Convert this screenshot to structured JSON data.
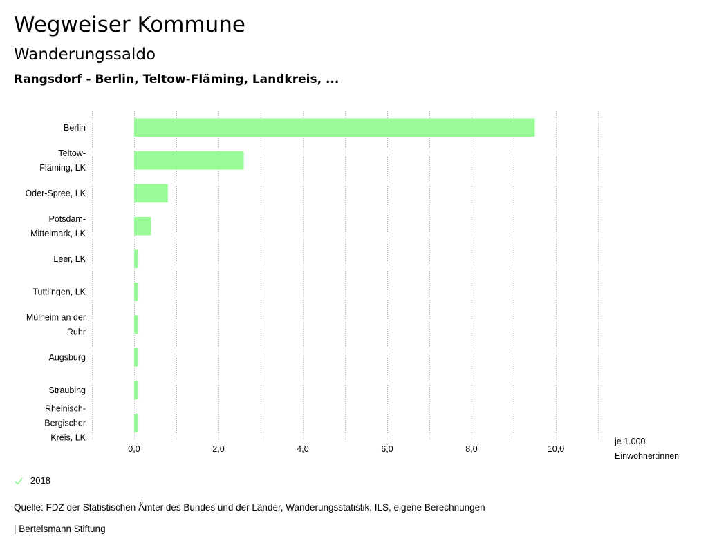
{
  "header": {
    "title": "Wegweiser Kommune",
    "subtitle": "Wanderungssaldo",
    "chart_title": "Rangsdorf - Berlin, Teltow-Fläming, Landkreis, ..."
  },
  "legend": {
    "label": "2018",
    "check_icon": "check-icon"
  },
  "footer": {
    "source": "Quelle: FDZ der Statistischen Ämter des Bundes und der Länder, Wanderungsstatistik, ILS, eigene Berechnungen",
    "brand": "| Bertelsmann Stiftung"
  },
  "colors": {
    "bar": "#98fb98",
    "grid": "#aaaaaa",
    "check": "#98fb98"
  },
  "chart_data": {
    "type": "bar",
    "orientation": "horizontal",
    "title": "Rangsdorf - Berlin, Teltow-Fläming, Landkreis, ...",
    "categories": [
      [
        "Berlin"
      ],
      [
        "Teltow-",
        "Fläming, LK"
      ],
      [
        "Oder-Spree, LK"
      ],
      [
        "Potsdam-",
        "Mittelmark, LK"
      ],
      [
        "Leer, LK"
      ],
      [
        "Tuttlingen, LK"
      ],
      [
        "Mülheim an der",
        "Ruhr"
      ],
      [
        "Augsburg"
      ],
      [
        "Straubing"
      ],
      [
        "Rheinisch-",
        "Bergischer",
        "Kreis, LK"
      ]
    ],
    "series": [
      {
        "name": "2018",
        "values": [
          9.5,
          2.6,
          0.8,
          0.4,
          0.1,
          0.1,
          0.1,
          0.1,
          0.1,
          0.1
        ]
      }
    ],
    "x_ticks": [
      0,
      2,
      4,
      6,
      8,
      10
    ],
    "x_tick_labels": [
      "0,0",
      "2,0",
      "4,0",
      "6,0",
      "8,0",
      "10,0"
    ],
    "x_minor_ticks": [
      -1,
      1,
      3,
      5,
      7,
      9,
      11
    ],
    "xlim": [
      -1,
      11
    ],
    "unit_label": [
      "je 1.000",
      "Einwohner:innen"
    ],
    "grid": true,
    "legend_position": "bottom-left"
  }
}
